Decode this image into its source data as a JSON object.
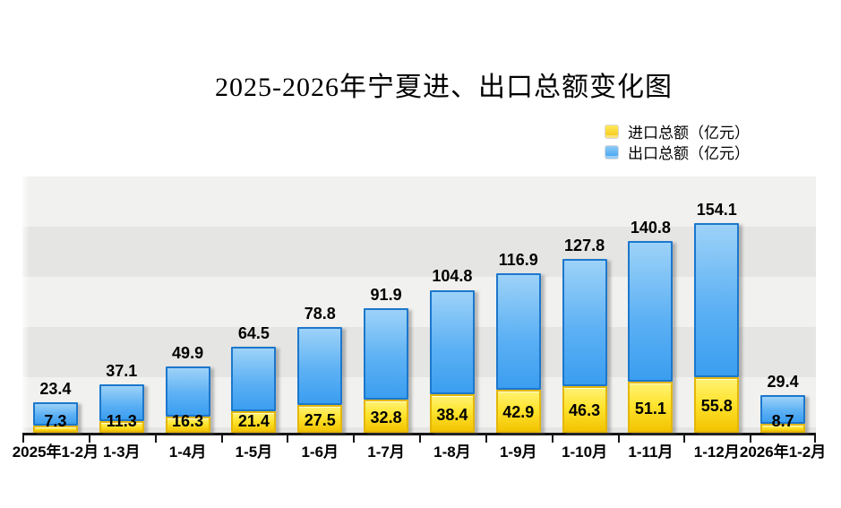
{
  "title": "2025-2026年宁夏进、出口总额变化图",
  "legend": {
    "items": [
      {
        "label": "进口总额（亿元）",
        "color": "#ffd400"
      },
      {
        "label": "出口总额（亿元）",
        "color": "#45a5f1"
      }
    ]
  },
  "chart_data": {
    "type": "bar",
    "stacked": true,
    "title": "2025-2026年宁夏进、出口总额变化图",
    "xlabel": "",
    "ylabel": "",
    "value_unit": "亿元",
    "categories": [
      "2025年1-2月",
      "1-3月",
      "1-4月",
      "1-5月",
      "1-6月",
      "1-7月",
      "1-8月",
      "1-9月",
      "1-10月",
      "1-11月",
      "1-12月",
      "2026年1-2月"
    ],
    "series": [
      {
        "name": "进口总额（亿元）",
        "color": "#ffd400",
        "values": [
          7.3,
          11.3,
          16.3,
          21.4,
          27.5,
          32.8,
          38.4,
          42.9,
          46.3,
          51.1,
          55.8,
          8.7
        ]
      },
      {
        "name": "出口总额（亿元）",
        "color": "#45a5f1",
        "values": [
          23.4,
          37.1,
          49.9,
          64.5,
          78.8,
          91.9,
          104.8,
          116.9,
          127.8,
          140.8,
          154.1,
          29.4
        ]
      }
    ],
    "ylim": [
      0,
      260
    ],
    "grid": "horizontal-bands",
    "legend_position": "top-right",
    "label_colors": {
      "background_band_light": "#f1f1ef",
      "background_band_dark": "#e5e5e3",
      "axis": "#151515",
      "labels": "#000000"
    }
  }
}
